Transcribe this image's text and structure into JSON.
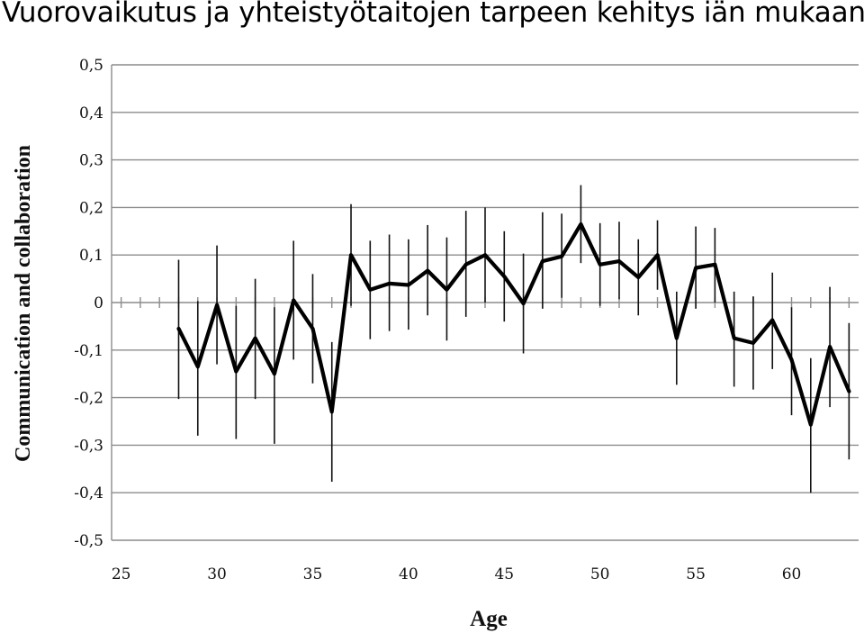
{
  "page_title": "Vuorovaikutus ja yhteistyötaitojen tarpeen kehitys iän mukaan",
  "chart_data": {
    "type": "line",
    "title": "",
    "xlabel": "Age",
    "ylabel": "Communication and collaboration",
    "xlim": [
      24.5,
      63.5
    ],
    "ylim": [
      -0.5,
      0.5
    ],
    "xticks": [
      25,
      30,
      35,
      40,
      45,
      50,
      55,
      60
    ],
    "xtick_labels": [
      "25",
      "30",
      "35",
      "40",
      "45",
      "50",
      "55",
      "60"
    ],
    "yticks": [
      0.5,
      0.4,
      0.3,
      0.2,
      0.1,
      0,
      -0.1,
      -0.2,
      -0.3,
      -0.4,
      -0.5
    ],
    "ytick_labels": [
      "0,5",
      "0,4",
      "0,3",
      "0,2",
      "0,1",
      "0",
      "-0,1",
      "-0,2",
      "-0,3",
      "-0,4",
      "-0,5"
    ],
    "grid": true,
    "line_color": "#000000",
    "series": [
      {
        "x": [
          28,
          29,
          30,
          31,
          32,
          33,
          34,
          35,
          36,
          37,
          38,
          39,
          40,
          41,
          42,
          43,
          44,
          45,
          46,
          47,
          48,
          49,
          50,
          51,
          52,
          53,
          54,
          55,
          56,
          57,
          58,
          59,
          60,
          61,
          62,
          63
        ],
        "y": [
          -0.055,
          -0.135,
          -0.005,
          -0.145,
          -0.075,
          -0.15,
          0.005,
          -0.055,
          -0.23,
          0.1,
          0.027,
          0.04,
          0.037,
          0.067,
          0.027,
          0.08,
          0.1,
          0.055,
          -0.002,
          0.087,
          0.097,
          0.165,
          0.08,
          0.087,
          0.053,
          0.1,
          -0.075,
          0.073,
          0.08,
          -0.075,
          -0.085,
          -0.037,
          -0.12,
          -0.257,
          -0.093,
          -0.187
        ],
        "err_low": [
          -0.203,
          -0.28,
          -0.13,
          -0.287,
          -0.203,
          -0.297,
          -0.12,
          -0.17,
          -0.377,
          -0.007,
          -0.077,
          -0.06,
          -0.057,
          -0.027,
          -0.08,
          -0.03,
          0.0,
          -0.04,
          -0.107,
          -0.013,
          0.01,
          0.083,
          -0.007,
          0.007,
          -0.027,
          0.027,
          -0.173,
          -0.013,
          0.0,
          -0.177,
          -0.183,
          -0.14,
          -0.237,
          -0.4,
          -0.22,
          -0.33
        ],
        "err_high": [
          0.09,
          0.003,
          0.12,
          -0.007,
          0.05,
          -0.01,
          0.13,
          0.06,
          -0.083,
          0.207,
          0.13,
          0.143,
          0.133,
          0.163,
          0.137,
          0.193,
          0.2,
          0.15,
          0.103,
          0.19,
          0.187,
          0.247,
          0.167,
          0.17,
          0.133,
          0.173,
          0.023,
          0.16,
          0.157,
          0.023,
          0.013,
          0.063,
          -0.01,
          -0.117,
          0.033,
          -0.043
        ]
      }
    ]
  }
}
